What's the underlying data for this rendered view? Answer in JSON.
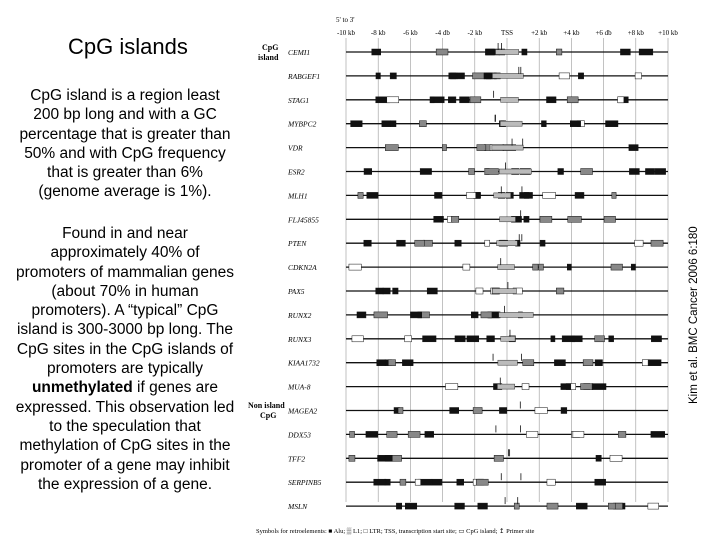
{
  "title": "CpG islands",
  "paragraph1": "CpG island is a region least 200 bp long and with a GC percentage that is greater than 50% and with CpG frequency that is greater than 6% (genome average is 1%).",
  "paragraph2": {
    "before": "Found in and near approximately 40% of promoters of mammalian genes (about 70% in human promoters). A “typical” CpG island is 300-3000 bp long. The CpG sites in the CpG islands of promoters are typically ",
    "bold": "unmethylated",
    "after": " if genes are expressed. This observation led to the speculation that methylation of CpG sites in the promoter of a gene may inhibit the expression of a gene."
  },
  "citation": "Kim et al. BMC Cancer 2006 6:180",
  "diagram": {
    "direction_label": "5' to 3'",
    "axis_ticks": [
      "-10 kb",
      "-8 kb",
      "-6 kb",
      "-4 db",
      "-2 kb",
      "TSS",
      "+2 kb",
      "+4 kb",
      "+6 db",
      "+8 kb",
      "+10 kb"
    ],
    "group_labels": [
      "CpG island",
      "Non island CpG"
    ],
    "genes": [
      "CEMI1",
      "RABGEF1",
      "STAG1",
      "MYBPC2",
      "VDR",
      "ESR2",
      "MLH1",
      "FLJ45855",
      "PTEN",
      "CDKN2A",
      "PAX5",
      "RUNX2",
      "RUNX3",
      "KIAA1732",
      "MUA-8",
      "MAGEA2",
      "DDX53",
      "TFF2",
      "SERPINB5",
      "MSLN"
    ],
    "legend": "Symbols for retroelements: ■ Alu; ▒ L1; □ LTR; TSS, transcription start site; ▭ CpG island; ↥ Primer site"
  }
}
